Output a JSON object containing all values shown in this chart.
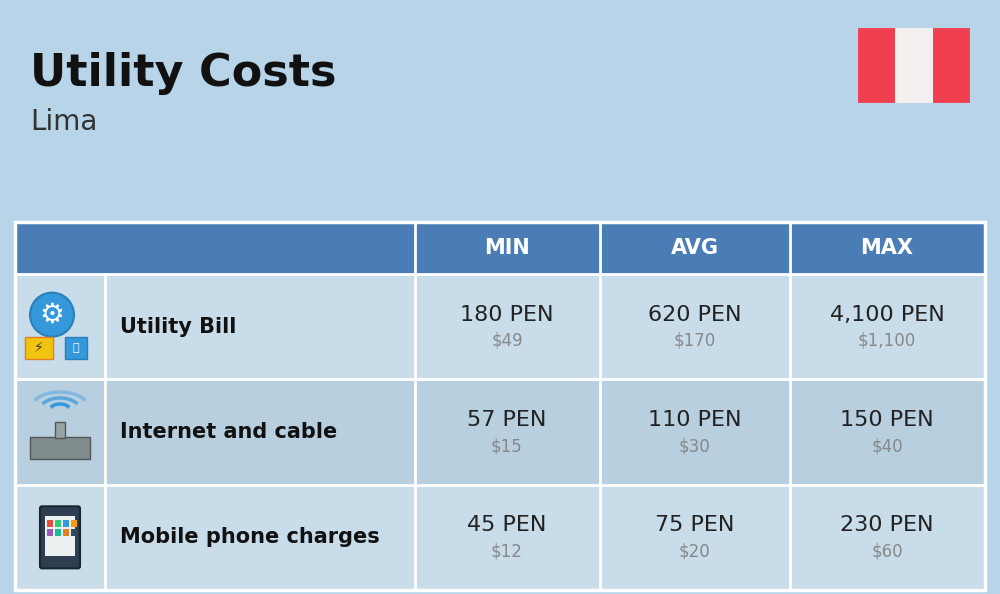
{
  "title": "Utility Costs",
  "subtitle": "Lima",
  "background_color": "#b8d4e8",
  "header_bg_color": "#4a7cb5",
  "header_text_color": "#ffffff",
  "row_bg_color_even": "#c8dcea",
  "row_bg_color_odd": "#b8cfe0",
  "icon_col_bg": "#b0c8dc",
  "table_border_color": "#ffffff",
  "columns": [
    "MIN",
    "AVG",
    "MAX"
  ],
  "rows": [
    {
      "label": "Utility Bill",
      "min_pen": "180 PEN",
      "min_usd": "$49",
      "avg_pen": "620 PEN",
      "avg_usd": "$170",
      "max_pen": "4,100 PEN",
      "max_usd": "$1,100",
      "icon": "utility"
    },
    {
      "label": "Internet and cable",
      "min_pen": "57 PEN",
      "min_usd": "$15",
      "avg_pen": "110 PEN",
      "avg_usd": "$30",
      "max_pen": "150 PEN",
      "max_usd": "$40",
      "icon": "internet"
    },
    {
      "label": "Mobile phone charges",
      "min_pen": "45 PEN",
      "min_usd": "$12",
      "avg_pen": "75 PEN",
      "avg_usd": "$20",
      "max_pen": "230 PEN",
      "max_usd": "$60",
      "icon": "mobile"
    }
  ],
  "pen_fontsize": 16,
  "usd_fontsize": 12,
  "label_fontsize": 15,
  "header_fontsize": 15,
  "title_fontsize": 32,
  "subtitle_fontsize": 20,
  "title_color": "#111111",
  "subtitle_color": "#333333",
  "pen_color": "#222222",
  "usd_color": "#888888",
  "label_color": "#111111",
  "flag_red": "#f04050",
  "flag_white": "#f5f0f0"
}
